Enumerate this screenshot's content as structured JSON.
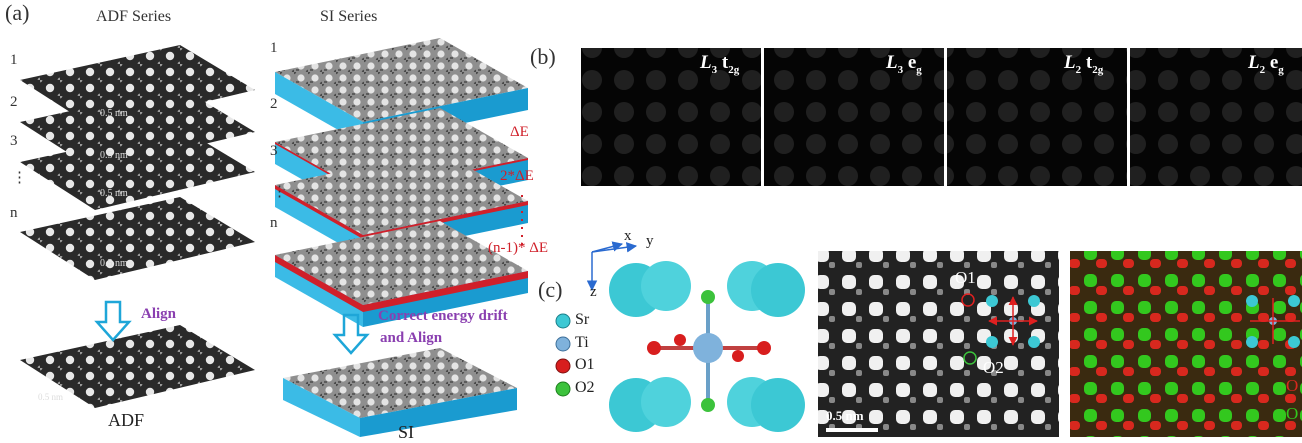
{
  "panel_a": {
    "label": "(a)",
    "adf_title": "ADF Series",
    "si_title": "SI Series",
    "adf_numbers": [
      "1",
      "2",
      "3",
      "n"
    ],
    "si_numbers": [
      "1",
      "2",
      "3",
      "n"
    ],
    "dots": "⋮",
    "scalebar": "0.5 nm",
    "energy_labels": [
      "ΔE",
      "2*ΔE",
      "(n-1)* ΔE"
    ],
    "align_label": "Align",
    "correct_label_1": "Correct energy drift",
    "correct_label_2": "and Align",
    "adf_result": "ADF",
    "si_result": "SI"
  },
  "panel_b": {
    "label": "(b)",
    "maps": [
      {
        "main": "L",
        "sub": "3",
        "orb": "t",
        "orbsub": "2g",
        "color": "#22e000"
      },
      {
        "main": "L",
        "sub": "3",
        "orb": "e",
        "orbsub": "g",
        "color": "#e8e000"
      },
      {
        "main": "L",
        "sub": "2",
        "orb": "t",
        "orbsub": "2g",
        "color": "#e000e8"
      },
      {
        "main": "L",
        "sub": "2",
        "orb": "e",
        "orbsub": "g",
        "color": "#00e0e8"
      }
    ]
  },
  "panel_c": {
    "label": "(c)",
    "axes": {
      "x": "x",
      "y": "y",
      "z": "z"
    },
    "legend": [
      {
        "name": "Sr",
        "color": "#3cc8d4"
      },
      {
        "name": "Ti",
        "color": "#7fb2dc"
      },
      {
        "name": "O1",
        "color": "#d81e1e"
      },
      {
        "name": "O2",
        "color": "#3cc23c"
      }
    ],
    "o1_label": "O1",
    "o2_label": "O2",
    "scalebar": "0.5 nm",
    "overlay_labels": [
      "O",
      "O"
    ]
  },
  "colors": {
    "cyan_slab": "#1ea6d8",
    "red_layer": "#d0202a",
    "arrow": "#1ea6d8",
    "purple": "#8a3fb0"
  }
}
